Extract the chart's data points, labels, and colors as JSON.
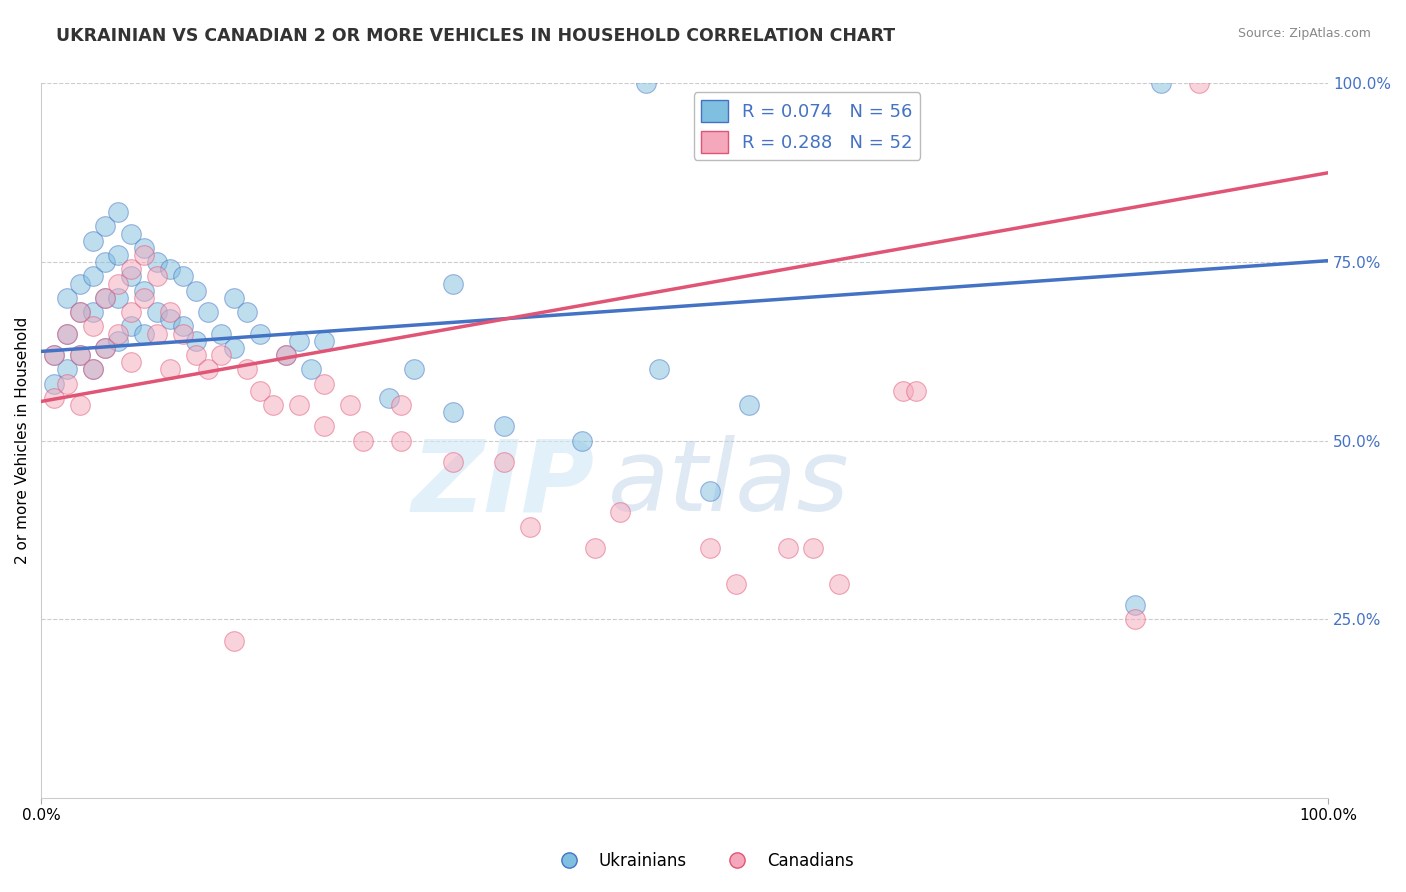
{
  "title": "UKRAINIAN VS CANADIAN 2 OR MORE VEHICLES IN HOUSEHOLD CORRELATION CHART",
  "source": "Source: ZipAtlas.com",
  "ylabel": "2 or more Vehicles in Household",
  "watermark_zip": "ZIP",
  "watermark_atlas": "atlas",
  "legend_blue_label": "R = 0.074   N = 56",
  "legend_pink_label": "R = 0.288   N = 52",
  "legend_label_blue": "Ukrainians",
  "legend_label_pink": "Canadians",
  "blue_color": "#7fbfdf",
  "pink_color": "#f5a8bb",
  "blue_line_color": "#4472c4",
  "pink_line_color": "#e05575",
  "title_color": "#333333",
  "axis_label_color": "#4472c4",
  "gridline_color": "#cccccc",
  "background_color": "#ffffff",
  "xlim": [
    0.0,
    1.0
  ],
  "ylim": [
    0.0,
    1.0
  ],
  "blue_x": [
    0.01,
    0.01,
    0.02,
    0.02,
    0.02,
    0.03,
    0.03,
    0.03,
    0.04,
    0.04,
    0.04,
    0.04,
    0.05,
    0.05,
    0.05,
    0.05,
    0.06,
    0.06,
    0.06,
    0.06,
    0.07,
    0.07,
    0.07,
    0.08,
    0.08,
    0.08,
    0.09,
    0.09,
    0.1,
    0.1,
    0.11,
    0.11,
    0.12,
    0.12,
    0.13,
    0.14,
    0.15,
    0.15,
    0.16,
    0.17,
    0.19,
    0.2,
    0.21,
    0.22,
    0.27,
    0.29,
    0.32,
    0.36,
    0.42,
    0.48,
    0.52,
    0.55,
    0.85,
    0.87,
    0.32,
    0.47
  ],
  "blue_y": [
    0.62,
    0.58,
    0.7,
    0.65,
    0.6,
    0.72,
    0.68,
    0.62,
    0.78,
    0.73,
    0.68,
    0.6,
    0.8,
    0.75,
    0.7,
    0.63,
    0.82,
    0.76,
    0.7,
    0.64,
    0.79,
    0.73,
    0.66,
    0.77,
    0.71,
    0.65,
    0.75,
    0.68,
    0.74,
    0.67,
    0.73,
    0.66,
    0.71,
    0.64,
    0.68,
    0.65,
    0.7,
    0.63,
    0.68,
    0.65,
    0.62,
    0.64,
    0.6,
    0.64,
    0.56,
    0.6,
    0.54,
    0.52,
    0.5,
    0.6,
    0.43,
    0.55,
    0.27,
    1.0,
    0.72,
    1.0
  ],
  "pink_x": [
    0.01,
    0.01,
    0.02,
    0.02,
    0.03,
    0.03,
    0.03,
    0.04,
    0.04,
    0.05,
    0.05,
    0.06,
    0.06,
    0.07,
    0.07,
    0.07,
    0.08,
    0.08,
    0.09,
    0.09,
    0.1,
    0.1,
    0.11,
    0.12,
    0.13,
    0.14,
    0.15,
    0.16,
    0.17,
    0.18,
    0.19,
    0.2,
    0.22,
    0.22,
    0.24,
    0.25,
    0.28,
    0.28,
    0.32,
    0.36,
    0.43,
    0.52,
    0.54,
    0.6,
    0.62,
    0.67,
    0.68,
    0.85,
    0.9,
    0.38,
    0.45,
    0.58
  ],
  "pink_y": [
    0.62,
    0.56,
    0.65,
    0.58,
    0.68,
    0.62,
    0.55,
    0.66,
    0.6,
    0.7,
    0.63,
    0.72,
    0.65,
    0.74,
    0.68,
    0.61,
    0.76,
    0.7,
    0.73,
    0.65,
    0.68,
    0.6,
    0.65,
    0.62,
    0.6,
    0.62,
    0.22,
    0.6,
    0.57,
    0.55,
    0.62,
    0.55,
    0.58,
    0.52,
    0.55,
    0.5,
    0.55,
    0.5,
    0.47,
    0.47,
    0.35,
    0.35,
    0.3,
    0.35,
    0.3,
    0.57,
    0.57,
    0.25,
    1.0,
    0.38,
    0.4,
    0.35
  ],
  "blue_trend_y_start": 0.625,
  "blue_trend_y_end": 0.752,
  "pink_trend_y_start": 0.555,
  "pink_trend_y_end": 0.875,
  "right_yticks": [
    0.25,
    0.5,
    0.75,
    1.0
  ],
  "right_yticklabels": [
    "25.0%",
    "50.0%",
    "75.0%",
    "100.0%"
  ],
  "xticks": [
    0.0,
    1.0
  ],
  "xticklabels": [
    "0.0%",
    "100.0%"
  ]
}
